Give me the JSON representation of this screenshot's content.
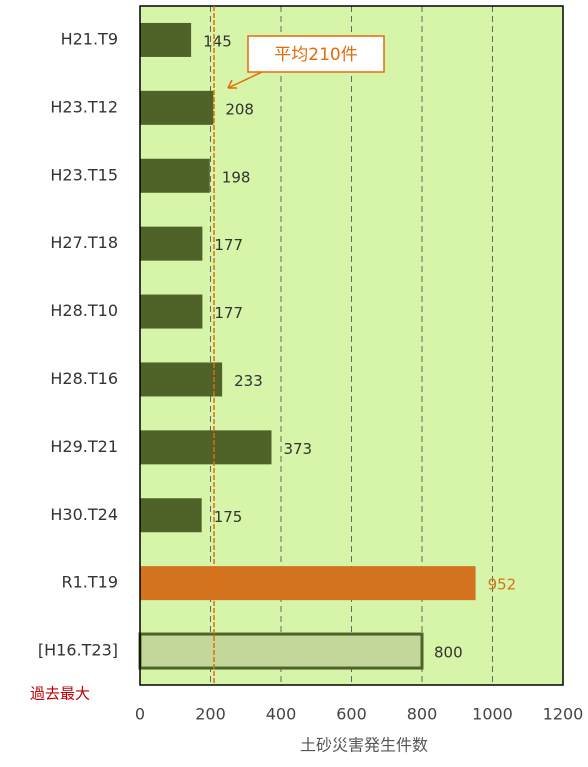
{
  "chart_data": {
    "type": "barh",
    "categories": [
      "H21.T9",
      "H23.T12",
      "H23.T15",
      "H27.T18",
      "H28.T10",
      "H28.T16",
      "H29.T21",
      "H30.T24",
      "R1.T19",
      "[H16.T23]"
    ],
    "values": [
      145,
      208,
      198,
      177,
      177,
      233,
      373,
      175,
      952,
      800
    ],
    "colors": [
      "#4f6228",
      "#4f6228",
      "#4f6228",
      "#4f6228",
      "#4f6228",
      "#4f6228",
      "#4f6228",
      "#4f6228",
      "#d4731f",
      "#c4d79b"
    ],
    "label_colors": [
      "#333333",
      "#333333",
      "#333333",
      "#333333",
      "#333333",
      "#333333",
      "#333333",
      "#333333",
      "#d4731f",
      "#333333"
    ],
    "xlim": [
      0,
      1200
    ],
    "xticks": [
      0,
      200,
      400,
      600,
      800,
      1000,
      1200
    ],
    "xlabel": "土砂災害発生件数",
    "grid": true,
    "background": "#d6f5a8",
    "average": 210,
    "average_label": "平均210件",
    "note": "過去最大"
  }
}
